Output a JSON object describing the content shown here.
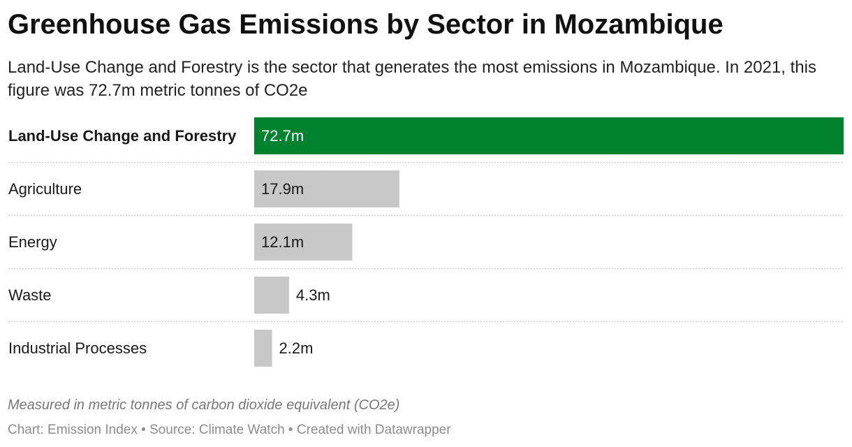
{
  "header": {
    "title": "Greenhouse Gas Emissions by Sector in Mozambique",
    "subtitle": "Land-Use Change and Forestry is the sector that generates the most emissions in Mozambique. In 2021, this figure was 72.7m metric tonnes of CO2e"
  },
  "footer": {
    "note": "Measured in metric tonnes of carbon dioxide equivalent (CO2e)",
    "credit": "Chart: Emission Index • Source: Climate Watch • Created with Datawrapper"
  },
  "chart_data": {
    "type": "bar",
    "orientation": "horizontal",
    "categories": [
      "Land-Use Change and Forestry",
      "Agriculture",
      "Energy",
      "Waste",
      "Industrial Processes"
    ],
    "values": [
      72.7,
      17.9,
      12.1,
      4.3,
      2.2
    ],
    "value_labels": [
      "72.7m",
      "17.9m",
      "12.1m",
      "4.3m",
      "2.2m"
    ],
    "highlight_index": 0,
    "colors": {
      "highlight": "#00822f",
      "default": "#c8c8c8",
      "separator": "#cccccc"
    },
    "xlim": [
      0,
      72.7
    ],
    "grid": false
  }
}
